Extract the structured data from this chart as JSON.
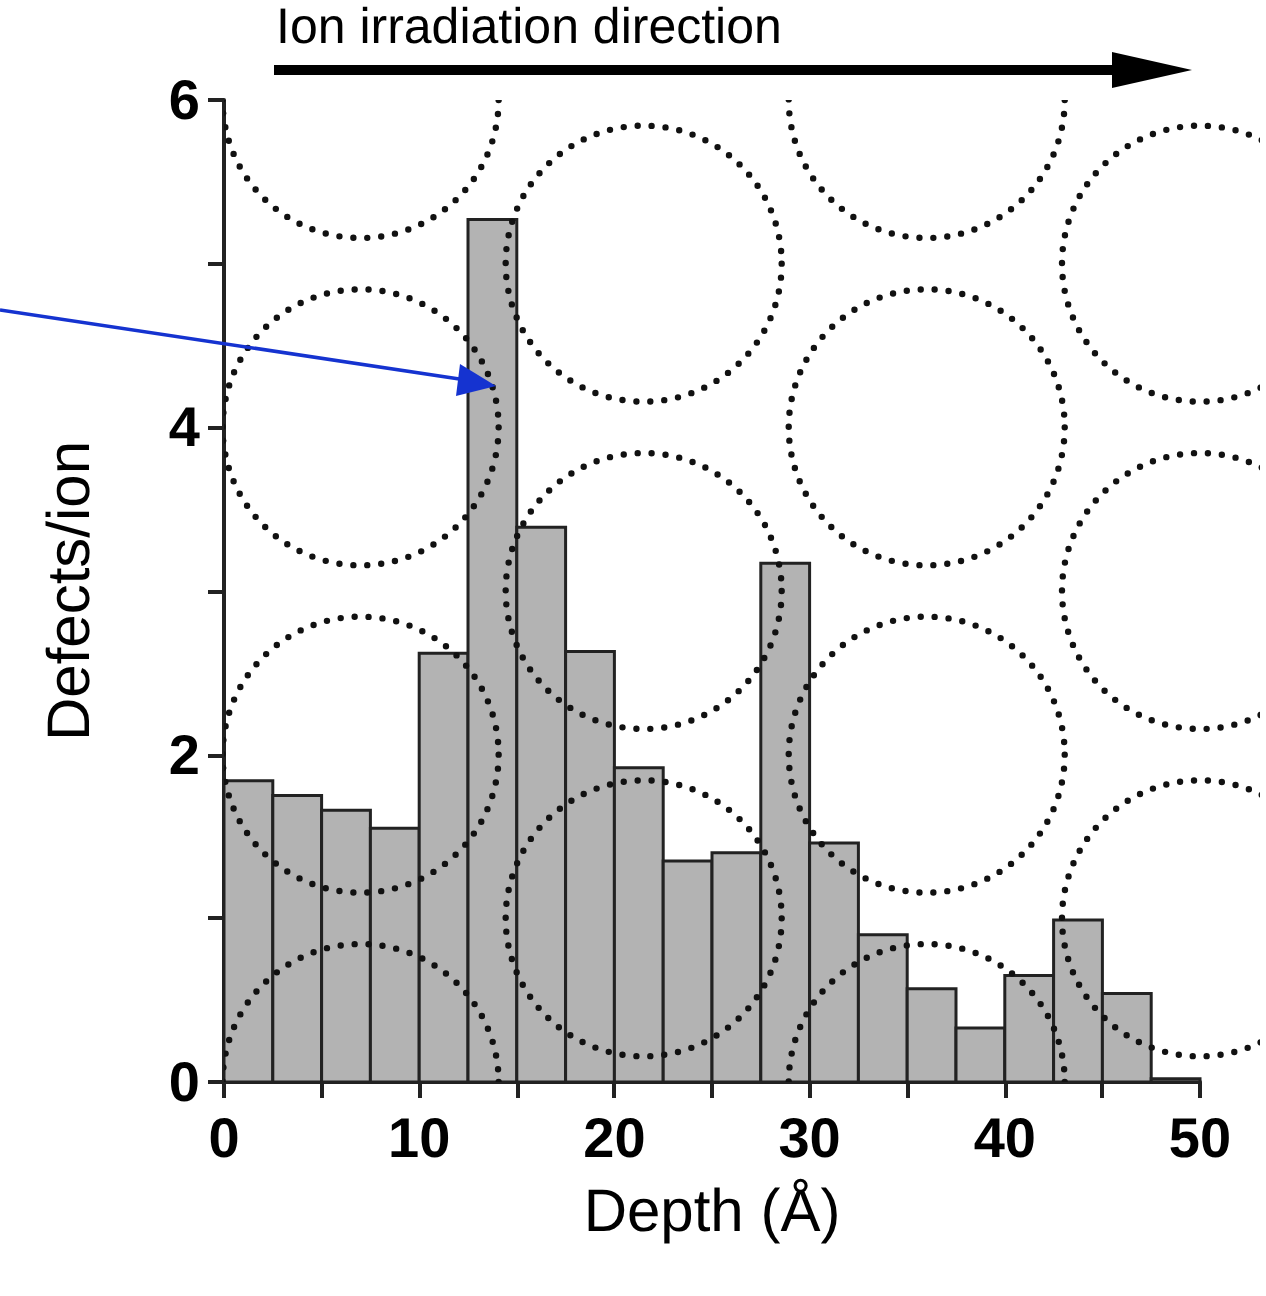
{
  "chart_data": {
    "type": "histogram",
    "xlabel": "Depth (Å)",
    "ylabel": "Defects/ion",
    "annotations": [
      "Ion irradiation direction"
    ],
    "bins": [
      0,
      2.5,
      5,
      7.5,
      10,
      12.5,
      15,
      17.5,
      20,
      22.5,
      25,
      27.5,
      30,
      32.5,
      35,
      37.5,
      40,
      42.5,
      45,
      47.5,
      50
    ],
    "values": [
      1.84,
      1.75,
      1.66,
      1.55,
      2.62,
      5.27,
      3.39,
      2.63,
      1.92,
      1.35,
      1.4,
      3.17,
      1.46,
      0.9,
      0.57,
      0.33,
      0.65,
      0.99,
      0.54,
      0.02
    ],
    "color": "#b3b3b3",
    "xlim": [
      0,
      50
    ],
    "xticks": [
      0,
      {
        "value": 5,
        "label": null
      },
      10,
      {
        "value": 15,
        "label": null
      },
      20,
      {
        "value": 25,
        "label": null
      },
      30,
      {
        "value": 35,
        "label": null
      },
      40,
      {
        "value": 45,
        "label": null
      },
      50
    ],
    "ylim": [
      0,
      6
    ],
    "yticks": [
      0,
      {
        "value": 1,
        "label": null
      },
      2,
      {
        "value": 3,
        "label": null
      },
      4,
      {
        "value": 5,
        "label": null
      },
      6
    ],
    "grid": false
  }
}
